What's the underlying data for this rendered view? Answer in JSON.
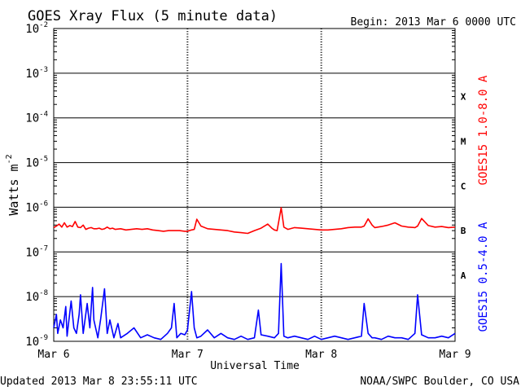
{
  "chart_data": {
    "type": "line",
    "title": "GOES Xray Flux (5 minute data)",
    "begin_label": "Begin:  2013 Mar 6 0000 UTC",
    "ylabel_base": "Watts m",
    "ylabel_exp": "-2",
    "xlabel": "Universal Time",
    "footer_left": "Updated 2013 Mar  8 23:55:11 UTC",
    "footer_right": "NOAA/SWPC Boulder, CO USA",
    "y_scale": "log",
    "ylim": [
      1e-09,
      0.01
    ],
    "y_ticks": [
      {
        "base": "10",
        "exp": "-2",
        "value": 0.01
      },
      {
        "base": "10",
        "exp": "-3",
        "value": 0.001
      },
      {
        "base": "10",
        "exp": "-4",
        "value": 0.0001
      },
      {
        "base": "10",
        "exp": "-5",
        "value": 1e-05
      },
      {
        "base": "10",
        "exp": "-6",
        "value": 1e-06
      },
      {
        "base": "10",
        "exp": "-7",
        "value": 1e-07
      },
      {
        "base": "10",
        "exp": "-8",
        "value": 1e-08
      },
      {
        "base": "10",
        "exp": "-9",
        "value": 1e-09
      }
    ],
    "x_ticks": [
      "Mar 6",
      "Mar 7",
      "Mar 8",
      "Mar 9"
    ],
    "xlim_days": [
      0,
      3
    ],
    "flare_classes": [
      {
        "label": "X",
        "value": 0.0003
      },
      {
        "label": "M",
        "value": 3e-05
      },
      {
        "label": "C",
        "value": 3e-06
      },
      {
        "label": "B",
        "value": 3e-07
      },
      {
        "label": "A",
        "value": 3e-08
      }
    ],
    "grid": true,
    "series": [
      {
        "name": "GOES15 1.0-8.0 A",
        "color": "#ff0000",
        "x": [
          0.0,
          0.02,
          0.04,
          0.06,
          0.08,
          0.1,
          0.12,
          0.14,
          0.16,
          0.18,
          0.2,
          0.22,
          0.24,
          0.26,
          0.28,
          0.3,
          0.32,
          0.34,
          0.36,
          0.38,
          0.4,
          0.42,
          0.44,
          0.46,
          0.5,
          0.54,
          0.58,
          0.62,
          0.66,
          0.7,
          0.74,
          0.78,
          0.82,
          0.86,
          0.9,
          0.94,
          0.98,
          1.0,
          1.03,
          1.05,
          1.07,
          1.1,
          1.15,
          1.2,
          1.25,
          1.3,
          1.35,
          1.4,
          1.45,
          1.5,
          1.55,
          1.6,
          1.63,
          1.65,
          1.67,
          1.7,
          1.72,
          1.75,
          1.8,
          1.85,
          1.9,
          1.95,
          2.0,
          2.05,
          2.1,
          2.15,
          2.2,
          2.25,
          2.3,
          2.32,
          2.35,
          2.38,
          2.4,
          2.45,
          2.5,
          2.55,
          2.6,
          2.65,
          2.7,
          2.72,
          2.75,
          2.8,
          2.85,
          2.9,
          2.95,
          3.0
        ],
        "values": [
          3.5e-07,
          3.8e-07,
          4.2e-07,
          3.6e-07,
          4.5e-07,
          3.6e-07,
          3.9e-07,
          3.7e-07,
          4.8e-07,
          3.6e-07,
          3.5e-07,
          4e-07,
          3.2e-07,
          3.4e-07,
          3.5e-07,
          3.3e-07,
          3.3e-07,
          3.4e-07,
          3.2e-07,
          3.3e-07,
          3.6e-07,
          3.3e-07,
          3.4e-07,
          3.2e-07,
          3.3e-07,
          3.1e-07,
          3.2e-07,
          3.3e-07,
          3.2e-07,
          3.3e-07,
          3.1e-07,
          3e-07,
          2.9e-07,
          3e-07,
          3e-07,
          3e-07,
          2.9e-07,
          2.9e-07,
          3.1e-07,
          3.2e-07,
          5.4e-07,
          3.8e-07,
          3.3e-07,
          3.2e-07,
          3.1e-07,
          3e-07,
          2.8e-07,
          2.7e-07,
          2.6e-07,
          3e-07,
          3.4e-07,
          4.2e-07,
          3.4e-07,
          3.1e-07,
          3e-07,
          9.8e-07,
          3.6e-07,
          3.2e-07,
          3.5e-07,
          3.4e-07,
          3.3e-07,
          3.2e-07,
          3.1e-07,
          3.1e-07,
          3.2e-07,
          3.3e-07,
          3.5e-07,
          3.6e-07,
          3.6e-07,
          3.8e-07,
          5.5e-07,
          4e-07,
          3.5e-07,
          3.7e-07,
          4e-07,
          4.5e-07,
          3.8e-07,
          3.6e-07,
          3.5e-07,
          3.8e-07,
          5.6e-07,
          3.9e-07,
          3.6e-07,
          3.7e-07,
          3.5e-07,
          3.6e-07
        ]
      },
      {
        "name": "GOES15 0.5-4.0 A",
        "color": "#0000ff",
        "x": [
          0.0,
          0.02,
          0.03,
          0.05,
          0.07,
          0.09,
          0.1,
          0.13,
          0.15,
          0.17,
          0.19,
          0.2,
          0.22,
          0.25,
          0.27,
          0.29,
          0.3,
          0.33,
          0.35,
          0.38,
          0.4,
          0.42,
          0.45,
          0.48,
          0.5,
          0.55,
          0.6,
          0.65,
          0.7,
          0.75,
          0.8,
          0.85,
          0.88,
          0.9,
          0.92,
          0.95,
          0.98,
          1.0,
          1.03,
          1.05,
          1.07,
          1.1,
          1.15,
          1.2,
          1.25,
          1.3,
          1.35,
          1.4,
          1.45,
          1.5,
          1.53,
          1.55,
          1.6,
          1.65,
          1.68,
          1.7,
          1.72,
          1.75,
          1.8,
          1.85,
          1.9,
          1.95,
          2.0,
          2.05,
          2.1,
          2.15,
          2.2,
          2.25,
          2.3,
          2.32,
          2.35,
          2.38,
          2.4,
          2.45,
          2.5,
          2.55,
          2.6,
          2.65,
          2.7,
          2.72,
          2.75,
          2.8,
          2.85,
          2.9,
          2.95,
          3.0
        ],
        "values": [
          2e-09,
          4e-09,
          1.5e-09,
          3e-09,
          2e-09,
          6e-09,
          1.3e-09,
          8e-09,
          2e-09,
          1.5e-09,
          4e-09,
          1.1e-08,
          1.5e-09,
          7e-09,
          2e-09,
          1.6e-08,
          3e-09,
          1.2e-09,
          3e-09,
          1.5e-08,
          1.5e-09,
          3e-09,
          1.2e-09,
          2.5e-09,
          1.2e-09,
          1.5e-09,
          2e-09,
          1.2e-09,
          1.4e-09,
          1.2e-09,
          1.1e-09,
          1.5e-09,
          2e-09,
          7e-09,
          1.2e-09,
          1.5e-09,
          1.4e-09,
          1.8e-09,
          1.3e-08,
          2e-09,
          1.2e-09,
          1.3e-09,
          1.8e-09,
          1.2e-09,
          1.5e-09,
          1.2e-09,
          1.1e-09,
          1.3e-09,
          1.1e-09,
          1.2e-09,
          5e-09,
          1.4e-09,
          1.3e-09,
          1.2e-09,
          1.5e-09,
          5.5e-08,
          1.3e-09,
          1.2e-09,
          1.3e-09,
          1.2e-09,
          1.1e-09,
          1.3e-09,
          1.1e-09,
          1.2e-09,
          1.3e-09,
          1.2e-09,
          1.1e-09,
          1.2e-09,
          1.3e-09,
          7e-09,
          1.5e-09,
          1.2e-09,
          1.2e-09,
          1.1e-09,
          1.3e-09,
          1.2e-09,
          1.2e-09,
          1.1e-09,
          1.5e-09,
          1.1e-08,
          1.4e-09,
          1.2e-09,
          1.2e-09,
          1.3e-09,
          1.2e-09,
          1.5e-09
        ]
      }
    ]
  }
}
